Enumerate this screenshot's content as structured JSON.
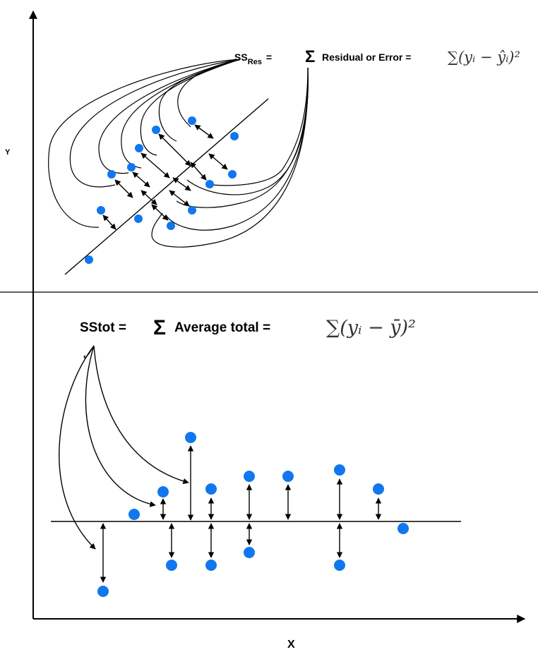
{
  "axes": {
    "x_label": "X",
    "y_label": "Y"
  },
  "ss_res": {
    "prefix": "SS",
    "subscript": "Res",
    "equals": "=",
    "sigma": "Σ",
    "text": "Residual or Error =",
    "formula": "∑(yᵢ − ŷᵢ)²"
  },
  "ss_tot": {
    "prefix": "SStot =",
    "sigma": "Σ",
    "text": "Average total =",
    "formula": "∑(yᵢ − ȳ)²"
  },
  "colors": {
    "point": "#1177ee",
    "line": "#000000"
  }
}
